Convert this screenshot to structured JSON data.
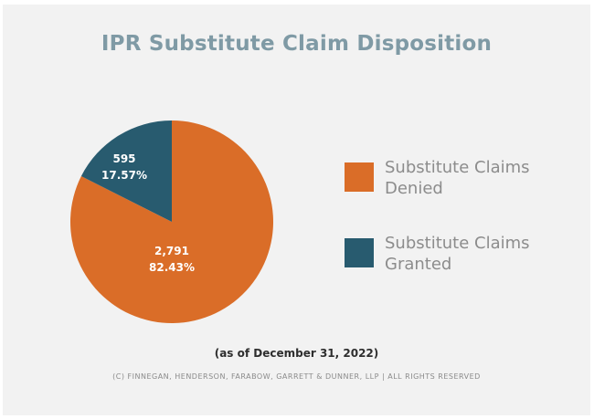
{
  "chart_data": {
    "type": "pie",
    "title": "IPR Substitute Claim Disposition",
    "slices": [
      {
        "label": "Substitute Claims Denied",
        "value": 2791,
        "value_label": "2,791",
        "percent_label": "82.43%",
        "color": "#da6d28"
      },
      {
        "label": "Substitute Claims Granted",
        "value": 595,
        "value_label": "595",
        "percent_label": "17.57%",
        "color": "#285b6f"
      }
    ],
    "legend_placement": "right"
  },
  "legend": {
    "items": [
      {
        "label": "Substitute Claims Denied",
        "color": "#da6d28"
      },
      {
        "label": "Substitute Claims Granted",
        "color": "#285b6f"
      }
    ]
  },
  "footnote": "(as of December 31, 2022)",
  "copyright": "(C) FINNEGAN, HENDERSON, FARABOW, GARRETT & DUNNER, LLP | ALL RIGHTS RESERVED"
}
